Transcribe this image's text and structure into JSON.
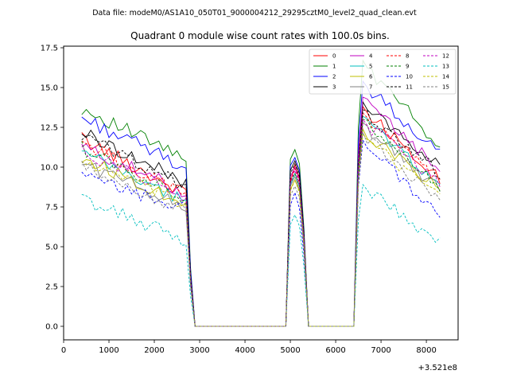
{
  "chart_data": {
    "type": "line",
    "suptitle": "Data file: modeM0/AS1A10_050T01_9000004212_29295cztM0_level2_quad_clean.evt",
    "title": "Quadrant 0 module wise count rates with 100.0s bins.",
    "xlabel": "",
    "ylabel": "",
    "x_offset_text": "+3.521e8",
    "xlim": [
      0,
      8700
    ],
    "ylim": [
      -0.85,
      17.6
    ],
    "xticks": [
      0,
      1000,
      2000,
      3000,
      4000,
      5000,
      6000,
      7000,
      8000
    ],
    "xtick_labels": [
      "0",
      "1000",
      "2000",
      "3000",
      "4000",
      "5000",
      "6000",
      "7000",
      "8000"
    ],
    "yticks": [
      0.0,
      2.5,
      5.0,
      7.5,
      10.0,
      12.5,
      15.0,
      17.5
    ],
    "ytick_labels": [
      "0.0",
      "2.5",
      "5.0",
      "7.5",
      "10.0",
      "12.5",
      "15.0",
      "17.5"
    ],
    "legend": {
      "location": "top-right",
      "columns": 4
    },
    "segments": [
      {
        "x_start": 400,
        "x_end": 2700,
        "then_zero_to": 4900
      },
      {
        "x_start": 5000,
        "x_end": 5300,
        "then_zero_to": 6400
      },
      {
        "x_start": 6500,
        "x_end": 8300,
        "then_zero_to": null
      }
    ],
    "series": [
      {
        "name": "0",
        "color": "#ff0000",
        "dash": "solid",
        "seg1": [
          11.8,
          8.3
        ],
        "seg2": [
          9.0,
          10.2,
          9.3
        ],
        "seg3": [
          13.8,
          9.3
        ]
      },
      {
        "name": "1",
        "color": "#008000",
        "dash": "solid",
        "seg1": [
          13.7,
          10.5
        ],
        "seg2": [
          10.5,
          11.1,
          10.2
        ],
        "seg3": [
          16.7,
          11.3
        ]
      },
      {
        "name": "2",
        "color": "#0000ff",
        "dash": "solid",
        "seg1": [
          13.1,
          10.0
        ],
        "seg2": [
          10.1,
          10.6,
          9.8
        ],
        "seg3": [
          15.4,
          10.8
        ]
      },
      {
        "name": "3",
        "color": "#000000",
        "dash": "solid",
        "seg1": [
          12.2,
          9.0
        ],
        "seg2": [
          9.8,
          10.4,
          9.6
        ],
        "seg3": [
          14.1,
          10.0
        ]
      },
      {
        "name": "4",
        "color": "#c000c0",
        "dash": "solid",
        "seg1": [
          11.3,
          8.4
        ],
        "seg2": [
          9.4,
          10.0,
          9.2
        ],
        "seg3": [
          14.4,
          9.8
        ]
      },
      {
        "name": "5",
        "color": "#00bfbf",
        "dash": "solid",
        "seg1": [
          10.9,
          7.8
        ],
        "seg2": [
          8.9,
          9.6,
          8.8
        ],
        "seg3": [
          13.2,
          8.9
        ]
      },
      {
        "name": "6",
        "color": "#bfbf00",
        "dash": "solid",
        "seg1": [
          10.6,
          7.7
        ],
        "seg2": [
          8.6,
          9.2,
          8.5
        ],
        "seg3": [
          12.4,
          8.6
        ]
      },
      {
        "name": "7",
        "color": "#808080",
        "dash": "solid",
        "seg1": [
          10.3,
          7.5
        ],
        "seg2": [
          8.8,
          9.4,
          8.6
        ],
        "seg3": [
          12.8,
          8.5
        ]
      },
      {
        "name": "8",
        "color": "#ff0000",
        "dash": "dashed",
        "seg1": [
          11.6,
          8.2
        ],
        "seg2": [
          9.2,
          9.9,
          9.0
        ],
        "seg3": [
          13.4,
          9.0
        ]
      },
      {
        "name": "9",
        "color": "#008000",
        "dash": "dashed",
        "seg1": [
          11.2,
          8.0
        ],
        "seg2": [
          9.0,
          9.6,
          8.8
        ],
        "seg3": [
          13.0,
          8.8
        ]
      },
      {
        "name": "10",
        "color": "#0000ff",
        "dash": "dashed",
        "seg1": [
          9.4,
          7.4
        ],
        "seg2": [
          7.6,
          8.4,
          7.4
        ],
        "seg3": [
          11.7,
          6.9
        ]
      },
      {
        "name": "11",
        "color": "#000000",
        "dash": "dashed",
        "seg1": [
          12.0,
          8.8
        ],
        "seg2": [
          9.6,
          10.2,
          9.4
        ],
        "seg3": [
          13.6,
          9.6
        ]
      },
      {
        "name": "12",
        "color": "#c000c0",
        "dash": "dashed",
        "seg1": [
          11.0,
          8.2
        ],
        "seg2": [
          9.0,
          9.8,
          8.9
        ],
        "seg3": [
          13.0,
          9.0
        ]
      },
      {
        "name": "13",
        "color": "#00bfbf",
        "dash": "dashed",
        "seg1": [
          8.0,
          5.4
        ],
        "seg2": [
          6.4,
          7.0,
          6.3
        ],
        "seg3": [
          8.9,
          5.2
        ]
      },
      {
        "name": "14",
        "color": "#bfbf00",
        "dash": "dashed",
        "seg1": [
          10.4,
          7.6
        ],
        "seg2": [
          8.5,
          9.2,
          8.4
        ],
        "seg3": [
          12.1,
          8.1
        ]
      },
      {
        "name": "15",
        "color": "#808080",
        "dash": "dashed",
        "seg1": [
          10.0,
          7.2
        ],
        "seg2": [
          8.2,
          8.8,
          8.1
        ],
        "seg3": [
          12.2,
          7.9
        ]
      }
    ]
  }
}
